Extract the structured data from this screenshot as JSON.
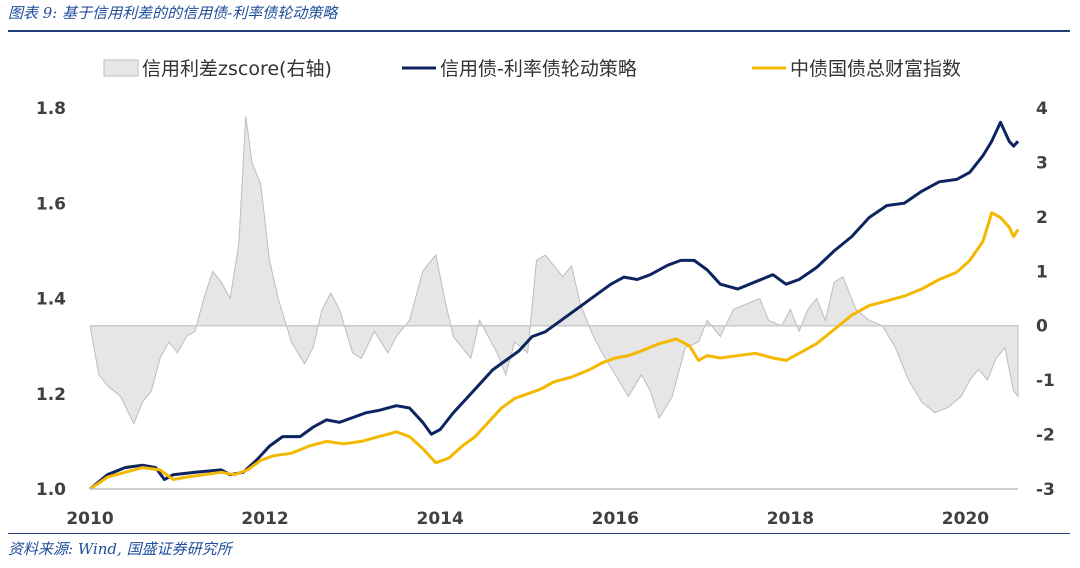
{
  "caption": "图表 9: 基于信用利差的的信用债-利率债轮动策略",
  "source": "资料来源: Wind, 国盛证券研究所",
  "chart_data": {
    "type": "line",
    "legend": {
      "placement": "top",
      "items": [
        {
          "name": "信用利差zscore(右轴)",
          "kind": "area",
          "color": "#e6e6e6"
        },
        {
          "name": "信用债-利率债轮动策略",
          "kind": "line",
          "color": "#0d2461"
        },
        {
          "name": "中债国债总财富指数",
          "kind": "line",
          "color": "#f5b800"
        }
      ]
    },
    "x_ticks": [
      "2010",
      "2012",
      "2014",
      "2016",
      "2018",
      "2020"
    ],
    "xlim": [
      2010,
      2020.6
    ],
    "y_left": {
      "ticks": [
        "1.0",
        "1.2",
        "1.4",
        "1.6",
        "1.8"
      ],
      "lim": [
        1.0,
        1.8
      ]
    },
    "y_right": {
      "ticks": [
        "-3",
        "-2",
        "-1",
        "0",
        "1",
        "2",
        "3",
        "4"
      ],
      "lim": [
        -3,
        4
      ]
    },
    "grid": false,
    "series": [
      {
        "name": "信用利差zscore(右轴)",
        "axis": "right",
        "type": "area",
        "color": "#e6e6e6",
        "x": [
          2010.0,
          2010.1,
          2010.2,
          2010.35,
          2010.5,
          2010.6,
          2010.7,
          2010.8,
          2010.9,
          2011.0,
          2011.1,
          2011.2,
          2011.3,
          2011.4,
          2011.5,
          2011.6,
          2011.7,
          2011.78,
          2011.85,
          2011.95,
          2012.05,
          2012.15,
          2012.3,
          2012.45,
          2012.55,
          2012.65,
          2012.75,
          2012.85,
          2013.0,
          2013.1,
          2013.25,
          2013.4,
          2013.5,
          2013.65,
          2013.8,
          2013.95,
          2014.05,
          2014.15,
          2014.25,
          2014.35,
          2014.45,
          2014.55,
          2014.65,
          2014.75,
          2014.85,
          2015.0,
          2015.1,
          2015.2,
          2015.3,
          2015.4,
          2015.5,
          2015.6,
          2015.75,
          2015.85,
          2016.0,
          2016.15,
          2016.3,
          2016.4,
          2016.5,
          2016.65,
          2016.8,
          2016.95,
          2017.05,
          2017.2,
          2017.35,
          2017.5,
          2017.65,
          2017.75,
          2017.9,
          2018.0,
          2018.1,
          2018.2,
          2018.3,
          2018.4,
          2018.5,
          2018.6,
          2018.75,
          2018.9,
          2019.05,
          2019.2,
          2019.35,
          2019.5,
          2019.65,
          2019.8,
          2019.95,
          2020.05,
          2020.15,
          2020.25,
          2020.35,
          2020.45,
          2020.55,
          2020.6
        ],
        "y": [
          0.0,
          -0.9,
          -1.1,
          -1.3,
          -1.8,
          -1.4,
          -1.2,
          -0.6,
          -0.3,
          -0.5,
          -0.2,
          -0.1,
          0.5,
          1.0,
          0.8,
          0.5,
          1.5,
          3.85,
          3.0,
          2.6,
          1.2,
          0.5,
          -0.3,
          -0.7,
          -0.4,
          0.3,
          0.6,
          0.3,
          -0.5,
          -0.6,
          -0.1,
          -0.5,
          -0.2,
          0.1,
          1.0,
          1.3,
          0.5,
          -0.2,
          -0.4,
          -0.6,
          0.1,
          -0.2,
          -0.5,
          -0.9,
          -0.3,
          -0.5,
          1.2,
          1.3,
          1.1,
          0.9,
          1.1,
          0.4,
          -0.2,
          -0.5,
          -0.9,
          -1.3,
          -0.9,
          -1.2,
          -1.7,
          -1.3,
          -0.4,
          -0.3,
          0.1,
          -0.2,
          0.3,
          0.4,
          0.5,
          0.1,
          0.0,
          0.3,
          -0.1,
          0.3,
          0.5,
          0.1,
          0.8,
          0.9,
          0.3,
          0.1,
          0.0,
          -0.4,
          -1.0,
          -1.4,
          -1.6,
          -1.5,
          -1.3,
          -1.0,
          -0.8,
          -1.0,
          -0.6,
          -0.4,
          -1.2,
          -1.3
        ]
      },
      {
        "name": "信用债-利率债轮动策略",
        "axis": "left",
        "type": "line",
        "color": "#0d2461",
        "x": [
          2010.0,
          2010.2,
          2010.4,
          2010.6,
          2010.75,
          2010.85,
          2010.95,
          2011.2,
          2011.5,
          2011.6,
          2011.75,
          2011.9,
          2012.05,
          2012.2,
          2012.4,
          2012.55,
          2012.7,
          2012.85,
          2013.0,
          2013.15,
          2013.3,
          2013.5,
          2013.65,
          2013.8,
          2013.9,
          2014.0,
          2014.15,
          2014.3,
          2014.45,
          2014.6,
          2014.75,
          2014.9,
          2015.05,
          2015.2,
          2015.35,
          2015.5,
          2015.65,
          2015.8,
          2015.95,
          2016.1,
          2016.25,
          2016.4,
          2016.6,
          2016.75,
          2016.9,
          2017.05,
          2017.2,
          2017.4,
          2017.6,
          2017.8,
          2017.95,
          2018.1,
          2018.3,
          2018.5,
          2018.7,
          2018.9,
          2019.1,
          2019.3,
          2019.5,
          2019.7,
          2019.9,
          2020.05,
          2020.2,
          2020.3,
          2020.4,
          2020.5,
          2020.55,
          2020.6
        ],
        "y": [
          1.0,
          1.03,
          1.045,
          1.05,
          1.045,
          1.02,
          1.03,
          1.035,
          1.04,
          1.03,
          1.035,
          1.06,
          1.09,
          1.11,
          1.11,
          1.13,
          1.145,
          1.14,
          1.15,
          1.16,
          1.165,
          1.175,
          1.17,
          1.14,
          1.115,
          1.125,
          1.16,
          1.19,
          1.22,
          1.25,
          1.27,
          1.29,
          1.32,
          1.33,
          1.35,
          1.37,
          1.39,
          1.41,
          1.43,
          1.445,
          1.44,
          1.45,
          1.47,
          1.48,
          1.48,
          1.46,
          1.43,
          1.42,
          1.435,
          1.45,
          1.43,
          1.44,
          1.465,
          1.5,
          1.53,
          1.57,
          1.595,
          1.6,
          1.625,
          1.645,
          1.65,
          1.665,
          1.7,
          1.73,
          1.77,
          1.73,
          1.72,
          1.73
        ]
      },
      {
        "name": "中债国债总财富指数",
        "axis": "left",
        "type": "line",
        "color": "#f5b800",
        "x": [
          2010.0,
          2010.2,
          2010.4,
          2010.6,
          2010.8,
          2010.95,
          2011.1,
          2011.3,
          2011.5,
          2011.65,
          2011.8,
          2011.95,
          2012.1,
          2012.3,
          2012.5,
          2012.7,
          2012.9,
          2013.1,
          2013.3,
          2013.5,
          2013.65,
          2013.8,
          2013.95,
          2014.1,
          2014.25,
          2014.4,
          2014.55,
          2014.7,
          2014.85,
          2015.0,
          2015.15,
          2015.3,
          2015.5,
          2015.7,
          2015.85,
          2016.0,
          2016.15,
          2016.3,
          2016.5,
          2016.7,
          2016.85,
          2016.95,
          2017.05,
          2017.2,
          2017.4,
          2017.6,
          2017.8,
          2017.95,
          2018.1,
          2018.3,
          2018.5,
          2018.7,
          2018.9,
          2019.1,
          2019.3,
          2019.5,
          2019.7,
          2019.9,
          2020.05,
          2020.2,
          2020.3,
          2020.4,
          2020.5,
          2020.55,
          2020.6
        ],
        "y": [
          1.0,
          1.025,
          1.035,
          1.045,
          1.04,
          1.02,
          1.025,
          1.03,
          1.035,
          1.03,
          1.04,
          1.06,
          1.07,
          1.075,
          1.09,
          1.1,
          1.095,
          1.1,
          1.11,
          1.12,
          1.11,
          1.085,
          1.055,
          1.065,
          1.09,
          1.11,
          1.14,
          1.17,
          1.19,
          1.2,
          1.21,
          1.225,
          1.235,
          1.25,
          1.265,
          1.275,
          1.28,
          1.29,
          1.305,
          1.315,
          1.3,
          1.27,
          1.28,
          1.275,
          1.28,
          1.285,
          1.275,
          1.27,
          1.285,
          1.305,
          1.335,
          1.365,
          1.385,
          1.395,
          1.405,
          1.42,
          1.44,
          1.455,
          1.48,
          1.52,
          1.58,
          1.57,
          1.55,
          1.53,
          1.545
        ]
      }
    ]
  }
}
